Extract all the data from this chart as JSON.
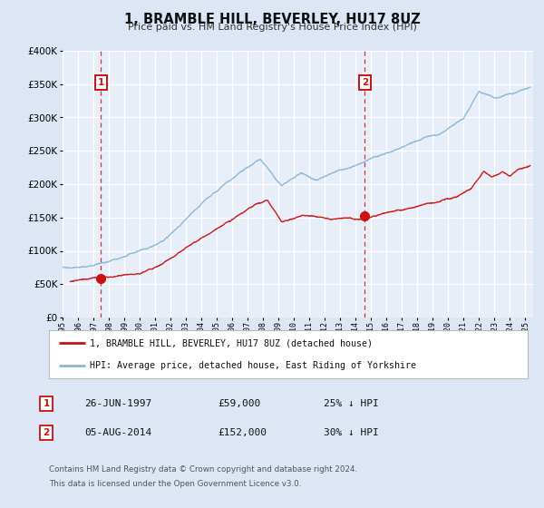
{
  "title": "1, BRAMBLE HILL, BEVERLEY, HU17 8UZ",
  "subtitle": "Price paid vs. HM Land Registry's House Price Index (HPI)",
  "ylim": [
    0,
    400000
  ],
  "xlim_start": 1995.0,
  "xlim_end": 2025.5,
  "yticks": [
    0,
    50000,
    100000,
    150000,
    200000,
    250000,
    300000,
    350000,
    400000
  ],
  "ytick_labels": [
    "£0",
    "£50K",
    "£100K",
    "£150K",
    "£200K",
    "£250K",
    "£300K",
    "£350K",
    "£400K"
  ],
  "bg_color": "#dce6f5",
  "plot_bg_color": "#e8eef8",
  "grid_color": "#ffffff",
  "red_color": "#cc1111",
  "blue_color": "#88b8d8",
  "marker1_date": 1997.48,
  "marker1_value": 59000,
  "marker1_label": "1",
  "marker1_text": "26-JUN-1997",
  "marker1_price": "£59,000",
  "marker1_hpi": "25% ↓ HPI",
  "marker2_date": 2014.59,
  "marker2_value": 152000,
  "marker2_label": "2",
  "marker2_text": "05-AUG-2014",
  "marker2_price": "£152,000",
  "marker2_hpi": "30% ↓ HPI",
  "legend_line1": "1, BRAMBLE HILL, BEVERLEY, HU17 8UZ (detached house)",
  "legend_line2": "HPI: Average price, detached house, East Riding of Yorkshire",
  "footnote1": "Contains HM Land Registry data © Crown copyright and database right 2024.",
  "footnote2": "This data is licensed under the Open Government Licence v3.0."
}
